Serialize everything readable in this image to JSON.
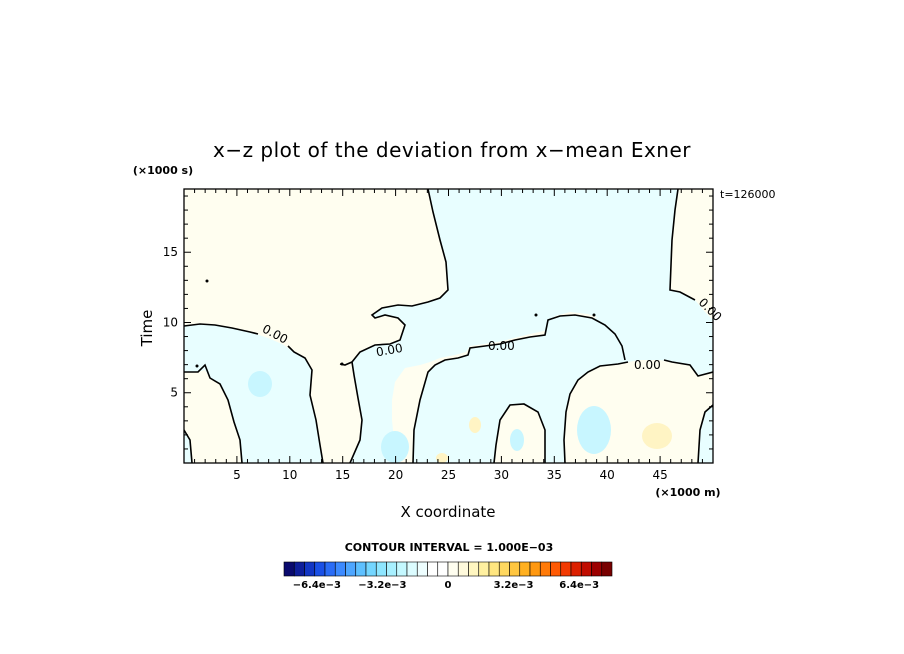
{
  "chart_data": {
    "type": "heatmap",
    "title": "x−z plot of the deviation from x−mean Exner",
    "xlabel": "X coordinate",
    "ylabel": "Time",
    "x_unit": "(×1000 m)",
    "y_unit": "(×1000 s)",
    "time_label": "t=126000",
    "xlim": [
      0,
      50
    ],
    "ylim": [
      0,
      19.5
    ],
    "x_ticks": [
      5,
      10,
      15,
      20,
      25,
      30,
      35,
      40,
      45
    ],
    "y_ticks": [
      5,
      10,
      15
    ],
    "contour_interval_text": "CONTOUR INTERVAL = 1.000E−03",
    "contour_labels": [
      "0.00",
      "0.00",
      "0.00",
      "0.00",
      "0.00"
    ],
    "colorbar": {
      "range": [
        -0.008,
        0.008
      ],
      "tick_labels": [
        "−6.4e−3",
        "−3.2e−3",
        "0",
        "3.2e−3",
        "6.4e−3"
      ],
      "tick_values": [
        -0.0064,
        -0.0032,
        0,
        0.0032,
        0.0064
      ],
      "colors": [
        "#0a0a6e",
        "#0e1e9a",
        "#1236c4",
        "#1a50e6",
        "#2a6cf6",
        "#3c8aff",
        "#4ea6ff",
        "#5ec0ff",
        "#74d6ff",
        "#8ee6ff",
        "#a8f0ff",
        "#c4f8ff",
        "#dcfcff",
        "#eefeff",
        "#ffffff",
        "#ffffff",
        "#fffef0",
        "#fffadc",
        "#fff6c0",
        "#fff0a0",
        "#ffe680",
        "#ffd860",
        "#ffc640",
        "#ffb020",
        "#ff9810",
        "#ff7a08",
        "#ff5a04",
        "#f23a02",
        "#dc2000",
        "#c00c00",
        "#9c0000",
        "#780000"
      ]
    },
    "fill_colors": {
      "negative": "#e8feff",
      "positive": "#fffef0",
      "neg_spot": "#c8f6ff",
      "pos_spot": "#fff4c4"
    }
  }
}
